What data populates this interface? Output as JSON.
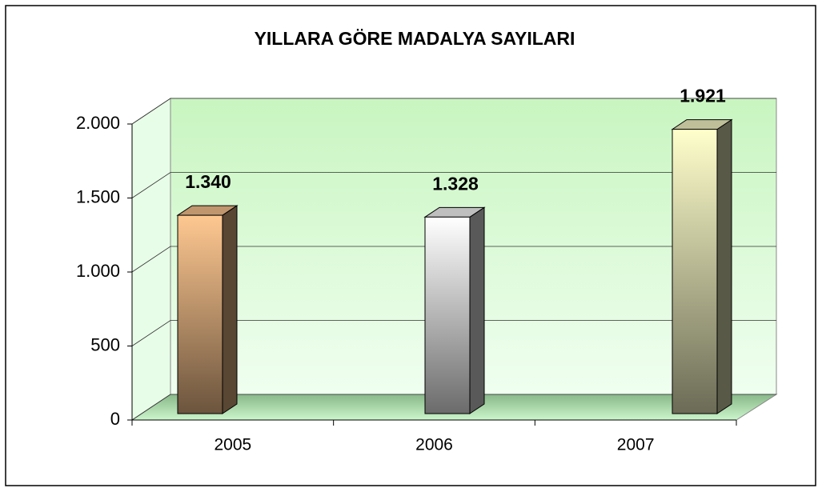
{
  "chart_data": {
    "type": "bar3d",
    "title": "YILLARA GÖRE MADALYA SAYILARI",
    "categories": [
      "2005",
      "2006",
      "2007"
    ],
    "values": [
      1340,
      1328,
      1921
    ],
    "value_labels": [
      "1.340",
      "1.328",
      "1.921"
    ],
    "colors": [
      "#ffc891",
      "#ffffff",
      "#ffffcc"
    ],
    "ylim": [
      0,
      2000
    ],
    "yticks": [
      {
        "value": 0,
        "label": "0"
      },
      {
        "value": 500,
        "label": "500"
      },
      {
        "value": 1000,
        "label": "1.000"
      },
      {
        "value": 1500,
        "label": "1.500"
      },
      {
        "value": 2000,
        "label": "2.000"
      }
    ],
    "grid": true
  }
}
